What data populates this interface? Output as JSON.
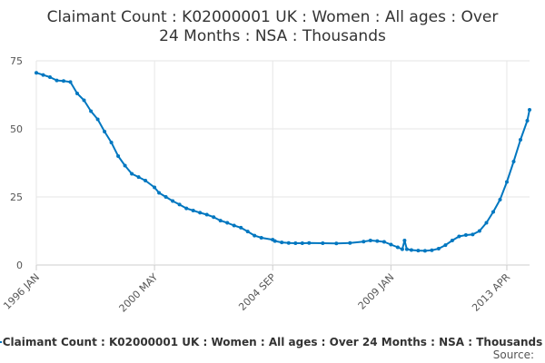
{
  "chart_data": {
    "type": "line",
    "title_lines": [
      "Claimant Count : K02000001 UK : Women : All ages : Over",
      "24 Months : NSA : Thousands"
    ],
    "xlabel": "",
    "ylabel": "",
    "x_ticks": [
      "1996 JAN",
      "2000 MAY",
      "2004 SEP",
      "2009 JAN",
      "2013 APR"
    ],
    "y_ticks": [
      0,
      25,
      50,
      75
    ],
    "ylim": [
      0,
      75
    ],
    "grid": true,
    "legend_placement": "bottom",
    "series": [
      {
        "name": "Claimant Count : K02000001 UK : Women : All ages : Over 24 Months : NSA : Thousands",
        "color": "#0077c0",
        "points": [
          [
            "1996 JAN",
            70.6
          ],
          [
            "1996 APR",
            69.8
          ],
          [
            "1996 JUL",
            69.0
          ],
          [
            "1996 OCT",
            67.8
          ],
          [
            "1997 JAN",
            67.6
          ],
          [
            "1997 APR",
            67.2
          ],
          [
            "1997 JUL",
            63.0
          ],
          [
            "1997 OCT",
            60.5
          ],
          [
            "1998 JAN",
            56.5
          ],
          [
            "1998 APR",
            53.5
          ],
          [
            "1998 JUL",
            49.0
          ],
          [
            "1998 OCT",
            45.0
          ],
          [
            "1999 JAN",
            40.0
          ],
          [
            "1999 APR",
            36.5
          ],
          [
            "1999 JUL",
            33.5
          ],
          [
            "1999 OCT",
            32.3
          ],
          [
            "2000 JAN",
            31.0
          ],
          [
            "2000 MAY",
            28.5
          ],
          [
            "2000 JUL",
            26.5
          ],
          [
            "2000 OCT",
            25.0
          ],
          [
            "2001 JAN",
            23.5
          ],
          [
            "2001 APR",
            22.2
          ],
          [
            "2001 JUL",
            20.8
          ],
          [
            "2001 OCT",
            20.0
          ],
          [
            "2002 JAN",
            19.2
          ],
          [
            "2002 APR",
            18.5
          ],
          [
            "2002 JUL",
            17.6
          ],
          [
            "2002 OCT",
            16.3
          ],
          [
            "2003 JAN",
            15.5
          ],
          [
            "2003 APR",
            14.5
          ],
          [
            "2003 JUL",
            13.7
          ],
          [
            "2003 OCT",
            12.3
          ],
          [
            "2004 JAN",
            10.8
          ],
          [
            "2004 APR",
            10.0
          ],
          [
            "2004 SEP",
            9.3
          ],
          [
            "2004 OCT",
            8.8
          ],
          [
            "2005 JAN",
            8.3
          ],
          [
            "2005 APR",
            8.1
          ],
          [
            "2005 JUL",
            8.0
          ],
          [
            "2005 OCT",
            8.0
          ],
          [
            "2006 JAN",
            8.1
          ],
          [
            "2006 JUL",
            8.0
          ],
          [
            "2007 JAN",
            7.9
          ],
          [
            "2007 JUL",
            8.1
          ],
          [
            "2008 JAN",
            8.6
          ],
          [
            "2008 APR",
            9.0
          ],
          [
            "2008 JUL",
            8.8
          ],
          [
            "2008 OCT",
            8.5
          ],
          [
            "2009 JAN",
            7.5
          ],
          [
            "2009 APR",
            6.5
          ],
          [
            "2009 JUN",
            5.8
          ],
          [
            "2009 JUL",
            9.0
          ],
          [
            "2009 AUG",
            5.8
          ],
          [
            "2009 OCT",
            5.5
          ],
          [
            "2010 JAN",
            5.3
          ],
          [
            "2010 APR",
            5.2
          ],
          [
            "2010 JUL",
            5.4
          ],
          [
            "2010 OCT",
            6.0
          ],
          [
            "2011 JAN",
            7.3
          ],
          [
            "2011 APR",
            9.0
          ],
          [
            "2011 JUL",
            10.5
          ],
          [
            "2011 OCT",
            11.0
          ],
          [
            "2012 JAN",
            11.2
          ],
          [
            "2012 APR",
            12.5
          ],
          [
            "2012 JUL",
            15.5
          ],
          [
            "2012 OCT",
            19.5
          ],
          [
            "2013 JAN",
            24.0
          ],
          [
            "2013 APR",
            30.5
          ],
          [
            "2013 JUL",
            38.0
          ],
          [
            "2013 OCT",
            46.0
          ],
          [
            "2014 JAN",
            53.0
          ],
          [
            "2014 FEB",
            57.0
          ]
        ]
      }
    ]
  },
  "credit": "Source:"
}
